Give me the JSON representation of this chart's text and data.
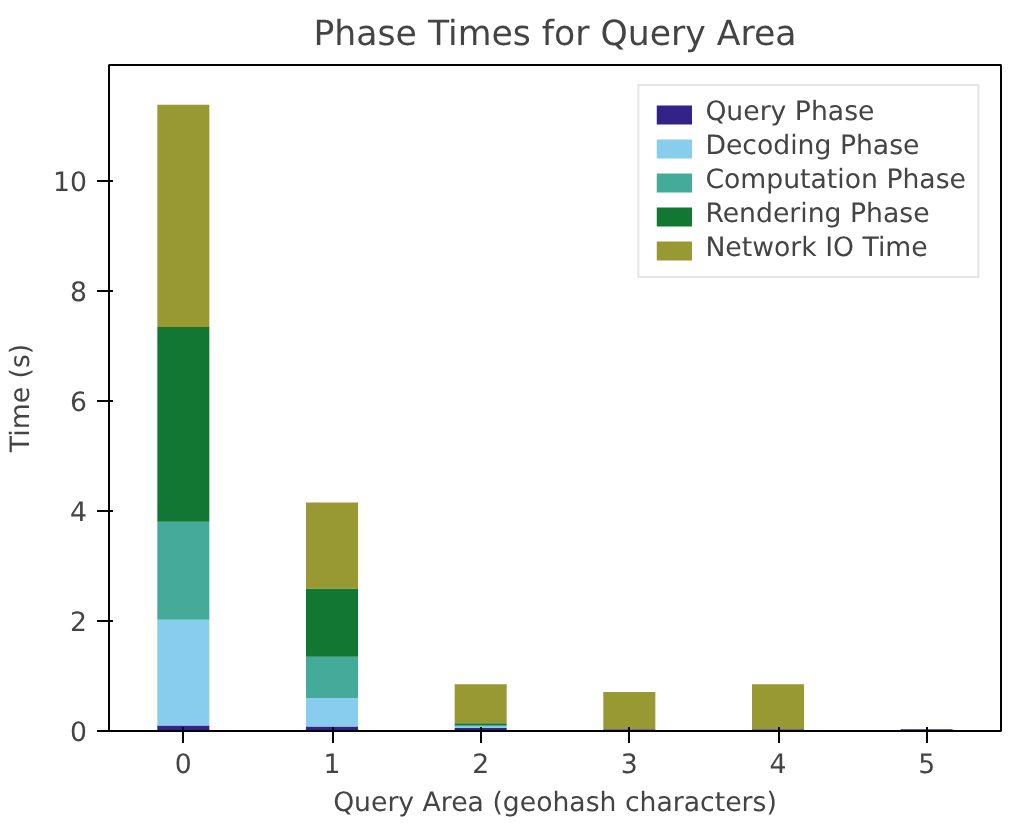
{
  "chart_data": {
    "type": "bar",
    "stacked": true,
    "title": "Phase Times for Query Area",
    "xlabel": "Query Area (geohash characters)",
    "ylabel": "Time (s)",
    "categories": [
      "0",
      "1",
      "2",
      "3",
      "4",
      "5"
    ],
    "series": [
      {
        "name": "Query Phase",
        "color": "#332288",
        "values": [
          0.1,
          0.08,
          0.06,
          0.03,
          0.03,
          0.03
        ]
      },
      {
        "name": "Decoding Phase",
        "color": "#88ccee",
        "values": [
          1.92,
          0.52,
          0.02,
          0,
          0,
          0
        ]
      },
      {
        "name": "Computation Phase",
        "color": "#44aa99",
        "values": [
          1.78,
          0.75,
          0.03,
          0,
          0,
          0
        ]
      },
      {
        "name": "Rendering Phase",
        "color": "#117733",
        "values": [
          3.54,
          1.24,
          0.03,
          0,
          0,
          0
        ]
      },
      {
        "name": "Network IO Time",
        "color": "#999933",
        "values": [
          4.04,
          1.56,
          0.71,
          0.68,
          0.82,
          0
        ]
      }
    ],
    "ylim": [
      0,
      12.1
    ],
    "yticks": [
      0,
      2,
      4,
      6,
      8,
      10
    ],
    "grid": false,
    "legend": "top right"
  }
}
